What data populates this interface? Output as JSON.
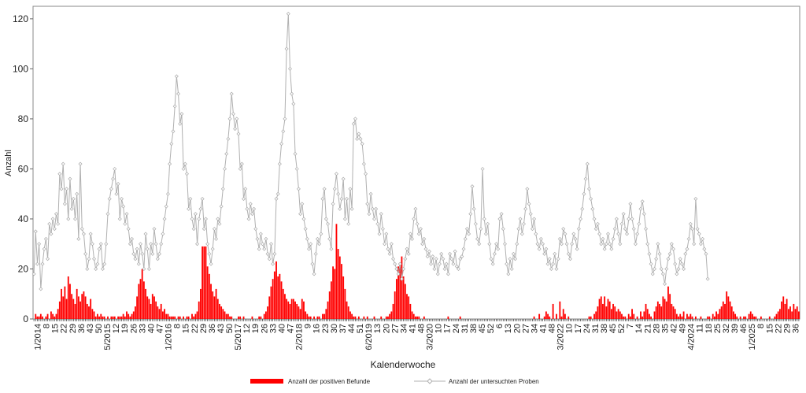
{
  "chart_data": {
    "type": "bar",
    "ylabel": "Anzahl",
    "xlabel": "Kalenderwoche",
    "ylim": [
      0,
      125
    ],
    "yticks": [
      0,
      20,
      40,
      60,
      80,
      100,
      120
    ],
    "grid": false,
    "legend_position": "bottom",
    "x_tick_labels": [
      "1/2014",
      "8",
      "15",
      "22",
      "29",
      "36",
      "43",
      "50",
      "5/2015",
      "12",
      "19",
      "26",
      "33",
      "40",
      "47",
      "1/2016",
      "8",
      "15",
      "22",
      "29",
      "36",
      "43",
      "50",
      "5/2017",
      "12",
      "19",
      "26",
      "33",
      "40",
      "47",
      "2/2018",
      "9",
      "16",
      "23",
      "30",
      "37",
      "44",
      "51",
      "6/2019",
      "13",
      "20",
      "27",
      "34",
      "41",
      "48",
      "3/2020",
      "10",
      "17",
      "24",
      "31",
      "38",
      "45",
      "52",
      "6",
      "13",
      "20",
      "27",
      "34",
      "41",
      "48",
      "3/2022",
      "10",
      "17",
      "24",
      "31",
      "38",
      "45",
      "52",
      "7",
      "14",
      "21",
      "28",
      "35",
      "42",
      "49",
      "4/2024",
      "11",
      "18",
      "25",
      "32",
      "39",
      "46",
      "1/2025",
      "8",
      "15",
      "22",
      "29",
      "36"
    ],
    "series": [
      {
        "name": "Anzahl der positiven Befunde",
        "kind": "bar",
        "color": "#ff0000",
        "values": [
          0,
          2,
          1,
          1,
          2,
          1,
          0,
          1,
          2,
          0,
          3,
          2,
          1,
          2,
          4,
          7,
          12,
          9,
          13,
          8,
          17,
          14,
          10,
          8,
          6,
          12,
          9,
          7,
          10,
          11,
          9,
          6,
          5,
          8,
          4,
          3,
          1,
          2,
          1,
          2,
          1,
          1,
          0,
          1,
          0,
          1,
          1,
          1,
          0,
          1,
          1,
          1,
          2,
          1,
          3,
          2,
          1,
          2,
          3,
          5,
          9,
          14,
          16,
          20,
          15,
          12,
          9,
          8,
          6,
          10,
          9,
          7,
          5,
          4,
          6,
          3,
          4,
          2,
          2,
          1,
          1,
          1,
          1,
          0,
          1,
          1,
          0,
          1,
          0,
          1,
          1,
          0,
          2,
          1,
          2,
          3,
          7,
          12,
          29,
          29,
          29,
          21,
          18,
          14,
          11,
          9,
          12,
          8,
          6,
          5,
          4,
          3,
          2,
          2,
          1,
          1,
          0,
          0,
          0,
          1,
          1,
          0,
          1,
          0,
          0,
          0,
          0,
          1,
          0,
          0,
          0,
          1,
          1,
          0,
          2,
          3,
          5,
          9,
          13,
          16,
          19,
          23,
          17,
          18,
          15,
          12,
          10,
          8,
          7,
          6,
          8,
          8,
          7,
          6,
          5,
          4,
          8,
          7,
          3,
          2,
          1,
          1,
          0,
          1,
          0,
          1,
          1,
          0,
          2,
          2,
          4,
          7,
          11,
          15,
          21,
          20,
          38,
          28,
          25,
          22,
          17,
          12,
          7,
          5,
          3,
          2,
          1,
          1,
          0,
          1,
          0,
          0,
          1,
          0,
          1,
          0,
          0,
          0,
          1,
          0,
          0,
          0,
          1,
          0,
          0,
          1,
          1,
          2,
          3,
          6,
          11,
          16,
          21,
          22,
          25,
          17,
          14,
          10,
          9,
          6,
          3,
          2,
          1,
          1,
          1,
          0,
          0,
          1,
          0,
          0,
          0,
          0,
          0,
          0,
          0,
          0,
          0,
          0,
          0,
          0,
          0,
          1,
          0,
          0,
          0,
          0,
          0,
          0,
          1,
          0,
          0,
          0,
          0,
          0,
          0,
          0,
          0,
          0,
          0,
          0,
          0,
          0,
          0,
          0,
          0,
          0,
          0,
          0,
          0,
          0,
          0,
          0,
          0,
          0,
          0,
          0,
          0,
          0,
          0,
          0,
          0,
          0,
          0,
          0,
          0,
          0,
          0,
          0,
          0,
          0,
          0,
          1,
          0,
          0,
          2,
          0,
          0,
          1,
          3,
          2,
          1,
          0,
          6,
          0,
          2,
          0,
          7,
          1,
          4,
          2,
          0,
          1,
          0,
          0,
          0,
          0,
          0,
          0,
          0,
          0,
          0,
          0,
          0,
          1,
          1,
          0,
          2,
          3,
          5,
          8,
          9,
          6,
          9,
          5,
          8,
          7,
          4,
          6,
          5,
          3,
          4,
          3,
          2,
          1,
          1,
          0,
          2,
          1,
          4,
          2,
          0,
          1,
          0,
          3,
          1,
          3,
          6,
          4,
          2,
          1,
          0,
          3,
          5,
          7,
          6,
          5,
          9,
          8,
          7,
          13,
          10,
          6,
          5,
          4,
          2,
          1,
          2,
          1,
          3,
          0,
          2,
          1,
          2,
          1,
          0,
          1,
          0,
          0,
          1,
          0,
          0,
          0,
          1,
          1,
          0,
          2,
          1,
          3,
          2,
          4,
          5,
          7,
          6,
          11,
          9,
          7,
          5,
          3,
          2,
          1,
          0,
          1,
          0,
          1,
          1,
          0,
          2,
          3,
          2,
          1,
          1,
          0,
          0,
          1,
          0,
          0,
          0,
          0,
          1,
          0,
          0,
          1,
          2,
          3,
          4,
          7,
          9,
          6,
          8,
          4,
          5,
          3,
          6,
          4,
          5,
          3
        ]
      },
      {
        "name": "Anzahl der untersuchten Proben",
        "kind": "line",
        "color": "#b0b0b0",
        "values": [
          18,
          35,
          22,
          30,
          12,
          22,
          28,
          32,
          24,
          38,
          34,
          40,
          36,
          42,
          38,
          58,
          52,
          62,
          46,
          52,
          40,
          56,
          44,
          48,
          40,
          50,
          32,
          62,
          36,
          34,
          26,
          20,
          24,
          34,
          30,
          24,
          20,
          22,
          28,
          30,
          20,
          22,
          30,
          42,
          48,
          52,
          56,
          60,
          50,
          54,
          40,
          48,
          45,
          38,
          42,
          36,
          30,
          32,
          26,
          24,
          28,
          22,
          30,
          26,
          20,
          34,
          28,
          20,
          30,
          26,
          36,
          30,
          24,
          26,
          30,
          34,
          40,
          45,
          50,
          62,
          70,
          75,
          85,
          97,
          90,
          78,
          82,
          60,
          62,
          58,
          44,
          48,
          40,
          36,
          42,
          30,
          40,
          44,
          48,
          36,
          40,
          30,
          26,
          22,
          28,
          36,
          32,
          40,
          38,
          45,
          52,
          60,
          66,
          72,
          80,
          90,
          82,
          76,
          80,
          74,
          60,
          62,
          48,
          52,
          44,
          40,
          46,
          42,
          44,
          36,
          32,
          28,
          34,
          30,
          28,
          32,
          26,
          24,
          30,
          22,
          26,
          48,
          50,
          62,
          70,
          75,
          80,
          108,
          122,
          100,
          90,
          86,
          66,
          60,
          52,
          42,
          46,
          40,
          36,
          32,
          28,
          30,
          22,
          18,
          26,
          32,
          30,
          34,
          48,
          52,
          40,
          38,
          32,
          28,
          46,
          52,
          58,
          50,
          44,
          48,
          56,
          40,
          48,
          38,
          52,
          44,
          78,
          80,
          72,
          74,
          72,
          70,
          62,
          58,
          46,
          42,
          50,
          44,
          40,
          44,
          38,
          34,
          42,
          36,
          30,
          34,
          28,
          26,
          30,
          24,
          22,
          20,
          18,
          22,
          16,
          20,
          24,
          28,
          26,
          34,
          32,
          40,
          44,
          38,
          34,
          36,
          30,
          32,
          28,
          25,
          27,
          22,
          25,
          20,
          24,
          18,
          22,
          26,
          24,
          20,
          22,
          18,
          26,
          24,
          22,
          27,
          21,
          20,
          24,
          25,
          28,
          32,
          36,
          34,
          42,
          53,
          44,
          38,
          32,
          30,
          36,
          60,
          40,
          34,
          38,
          30,
          24,
          22,
          26,
          30,
          28,
          40,
          42,
          36,
          30,
          22,
          18,
          24,
          20,
          26,
          24,
          30,
          36,
          40,
          34,
          38,
          44,
          52,
          46,
          42,
          36,
          40,
          34,
          30,
          28,
          32,
          30,
          26,
          28,
          22,
          24,
          20,
          22,
          26,
          20,
          24,
          32,
          30,
          36,
          34,
          30,
          26,
          24,
          30,
          34,
          32,
          28,
          36,
          40,
          44,
          50,
          56,
          62,
          52,
          48,
          44,
          40,
          36,
          38,
          34,
          30,
          32,
          28,
          30,
          34,
          30,
          28,
          32,
          36,
          40,
          34,
          30,
          38,
          42,
          36,
          34,
          40,
          46,
          40,
          36,
          30,
          34,
          38,
          44,
          47,
          42,
          36,
          30,
          26,
          22,
          18,
          20,
          24,
          30,
          26,
          20,
          18,
          14,
          20,
          24,
          26,
          30,
          28,
          22,
          18,
          20,
          24,
          22,
          20,
          26,
          28,
          32,
          38,
          36,
          30,
          48,
          36,
          34,
          30,
          32,
          28,
          26,
          16
        ]
      }
    ]
  }
}
